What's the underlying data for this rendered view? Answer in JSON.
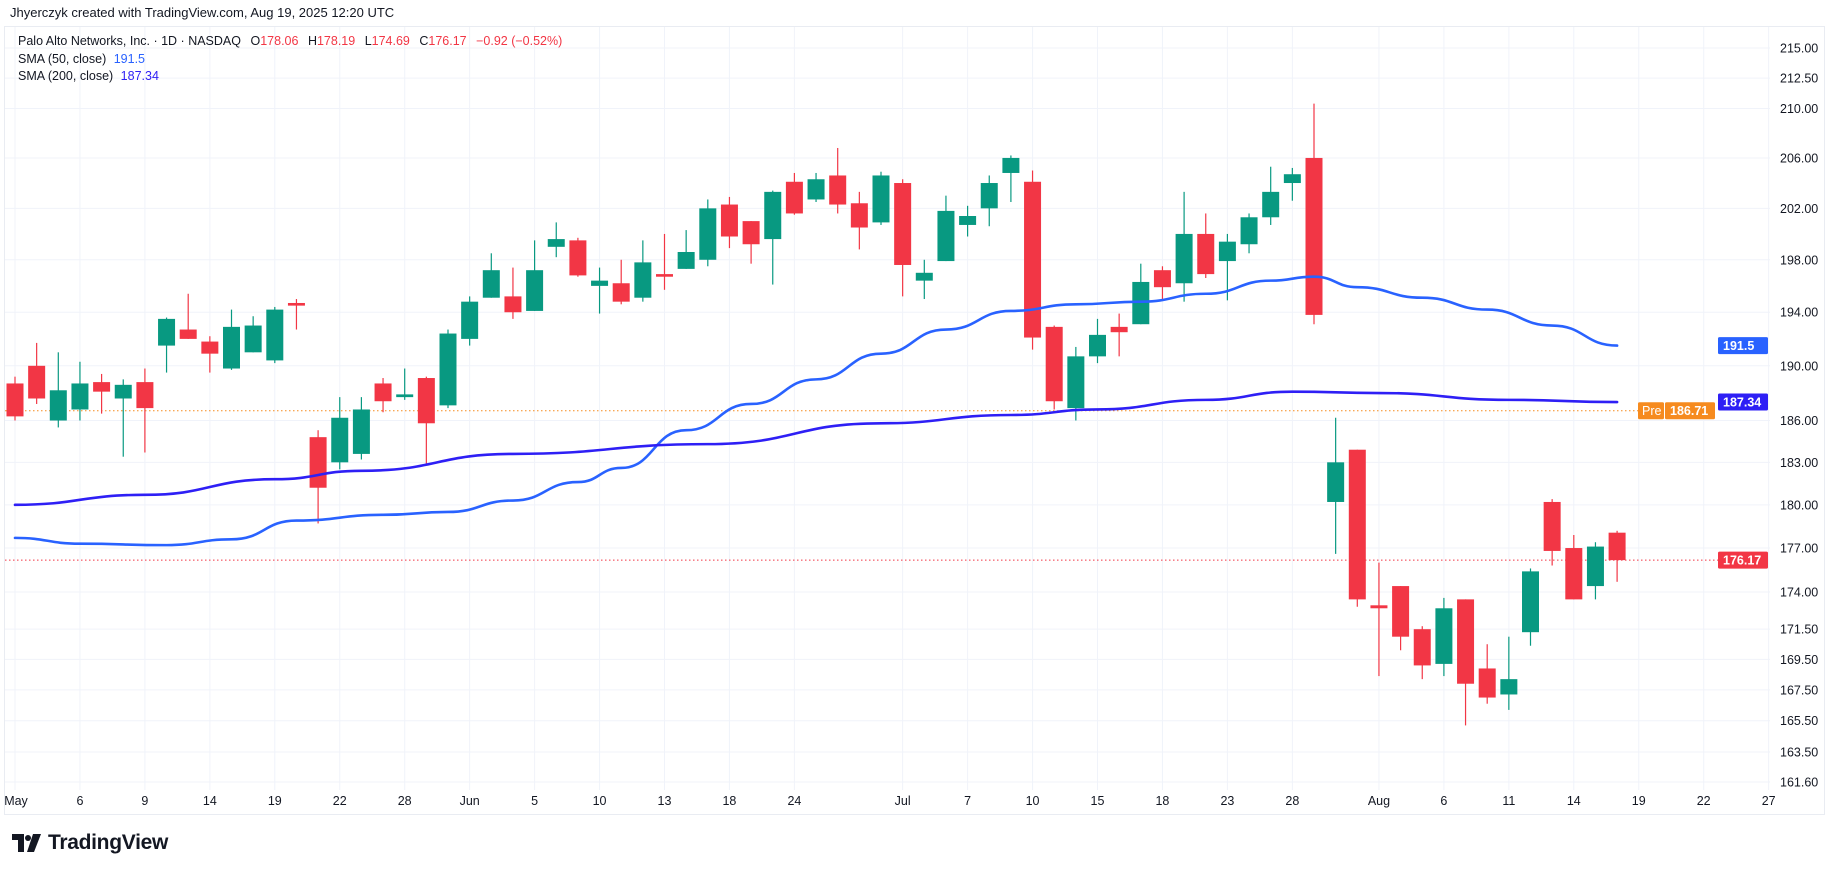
{
  "attribution": "Jhyerczyk created with TradingView.com, Aug 19, 2025 12:20 UTC",
  "legend": {
    "symbol": "Palo Alto Networks, Inc. · 1D · NASDAQ",
    "open_label": "O",
    "open": "178.06",
    "high_label": "H",
    "high": "178.19",
    "low_label": "L",
    "low": "174.69",
    "close_label": "C",
    "close": "176.17",
    "change": "−0.92 (−0.52%)",
    "sma50_label": "SMA (50, close)",
    "sma50_value": "191.5",
    "sma200_label": "SMA (200, close)",
    "sma200_value": "187.34"
  },
  "logo": {
    "text": "TradingView"
  },
  "colors": {
    "up": "#089981",
    "down": "#f23645",
    "sma50": "#2962ff",
    "sma200": "#2e1ff5",
    "premarket": "#f68b1f",
    "grid": "#f0f3fa"
  },
  "chart_data": {
    "type": "candlestick",
    "title": "Palo Alto Networks, Inc. · 1D · NASDAQ",
    "scale": "log",
    "ylim": [
      161.6,
      215.0
    ],
    "y_ticks": [
      "215.00",
      "212.50",
      "210.00",
      "206.00",
      "202.00",
      "198.00",
      "194.00",
      "190.00",
      "186.00",
      "183.00",
      "180.00",
      "177.00",
      "174.00",
      "171.50",
      "169.50",
      "167.50",
      "165.50",
      "163.50",
      "161.60"
    ],
    "x_ticks": [
      {
        "bar": 1,
        "label": "May"
      },
      {
        "bar": 4,
        "label": "6"
      },
      {
        "bar": 7,
        "label": "9"
      },
      {
        "bar": 10,
        "label": "14"
      },
      {
        "bar": 13,
        "label": "19"
      },
      {
        "bar": 16,
        "label": "22"
      },
      {
        "bar": 19,
        "label": "28"
      },
      {
        "bar": 22,
        "label": "Jun"
      },
      {
        "bar": 25,
        "label": "5"
      },
      {
        "bar": 28,
        "label": "10"
      },
      {
        "bar": 31,
        "label": "13"
      },
      {
        "bar": 34,
        "label": "18"
      },
      {
        "bar": 37,
        "label": "24"
      },
      {
        "bar": 42,
        "label": "Jul"
      },
      {
        "bar": 45,
        "label": "7"
      },
      {
        "bar": 48,
        "label": "10"
      },
      {
        "bar": 51,
        "label": "15"
      },
      {
        "bar": 54,
        "label": "18"
      },
      {
        "bar": 57,
        "label": "23"
      },
      {
        "bar": 60,
        "label": "28"
      },
      {
        "bar": 64,
        "label": "Aug"
      },
      {
        "bar": 67,
        "label": "6"
      },
      {
        "bar": 70,
        "label": "11"
      },
      {
        "bar": 73,
        "label": "14"
      },
      {
        "bar": 76,
        "label": "19"
      },
      {
        "bar": 79,
        "label": "22"
      },
      {
        "bar": 82,
        "label": "27"
      }
    ],
    "ohlc_columns": [
      "open",
      "high",
      "low",
      "close"
    ],
    "candles": [
      [
        188.7,
        189.2,
        186.0,
        186.3
      ],
      [
        190.0,
        191.7,
        187.2,
        187.6
      ],
      [
        186.0,
        191.0,
        185.5,
        188.2
      ],
      [
        186.8,
        190.3,
        186.0,
        188.7
      ],
      [
        188.8,
        189.4,
        186.5,
        188.1
      ],
      [
        187.6,
        189.0,
        183.4,
        188.6
      ],
      [
        188.8,
        189.8,
        183.7,
        186.9
      ],
      [
        191.5,
        193.6,
        189.5,
        193.5
      ],
      [
        192.7,
        195.4,
        192.0,
        192.0
      ],
      [
        191.8,
        192.2,
        189.5,
        190.9
      ],
      [
        189.8,
        194.2,
        189.7,
        192.9
      ],
      [
        191.0,
        193.7,
        191.0,
        193.0
      ],
      [
        190.4,
        194.4,
        190.2,
        194.2
      ],
      [
        194.7,
        195.0,
        192.7,
        194.5
      ],
      [
        184.8,
        185.3,
        178.7,
        181.2
      ],
      [
        183.0,
        187.7,
        182.5,
        186.2
      ],
      [
        183.6,
        187.7,
        183.2,
        186.8
      ],
      [
        188.7,
        189.1,
        186.6,
        187.4
      ],
      [
        187.7,
        189.8,
        187.5,
        187.9
      ],
      [
        189.1,
        189.2,
        182.9,
        185.8
      ],
      [
        187.1,
        192.7,
        186.9,
        192.4
      ],
      [
        192.0,
        195.2,
        191.5,
        194.8
      ],
      [
        195.1,
        198.5,
        195.1,
        197.2
      ],
      [
        195.2,
        197.4,
        193.5,
        194.0
      ],
      [
        194.1,
        199.5,
        194.1,
        197.2
      ],
      [
        199.0,
        200.9,
        198.2,
        199.6
      ],
      [
        199.5,
        199.7,
        196.7,
        196.8
      ],
      [
        196.0,
        197.4,
        193.9,
        196.4
      ],
      [
        196.2,
        198.0,
        194.6,
        194.8
      ],
      [
        195.1,
        199.5,
        194.8,
        197.8
      ],
      [
        196.9,
        200.0,
        195.7,
        196.7
      ],
      [
        197.3,
        200.3,
        197.3,
        198.6
      ],
      [
        198.0,
        202.7,
        197.5,
        202.0
      ],
      [
        202.3,
        202.9,
        198.9,
        199.8
      ],
      [
        201.0,
        201.0,
        197.7,
        199.2
      ],
      [
        199.6,
        203.4,
        196.1,
        203.3
      ],
      [
        204.1,
        204.8,
        201.5,
        201.6
      ],
      [
        202.7,
        204.8,
        202.5,
        204.3
      ],
      [
        204.6,
        206.8,
        201.6,
        202.3
      ],
      [
        202.4,
        203.3,
        198.8,
        200.5
      ],
      [
        200.9,
        204.9,
        200.7,
        204.6
      ],
      [
        204.0,
        204.3,
        195.2,
        197.6
      ],
      [
        196.4,
        198.0,
        195.0,
        197.0
      ],
      [
        197.9,
        203.0,
        197.9,
        201.8
      ],
      [
        200.7,
        202.2,
        199.8,
        201.4
      ],
      [
        202.0,
        204.6,
        200.6,
        204.0
      ],
      [
        204.8,
        206.2,
        202.5,
        206.0
      ],
      [
        204.1,
        205.0,
        191.2,
        192.1
      ],
      [
        192.9,
        193.0,
        186.8,
        187.4
      ],
      [
        186.9,
        191.4,
        186.0,
        190.7
      ],
      [
        190.7,
        193.5,
        190.2,
        192.3
      ],
      [
        192.9,
        193.9,
        190.7,
        192.5
      ],
      [
        193.1,
        197.7,
        193.1,
        196.3
      ],
      [
        197.2,
        197.5,
        195.0,
        195.9
      ],
      [
        196.2,
        203.3,
        194.8,
        200.0
      ],
      [
        200.0,
        201.6,
        196.6,
        196.9
      ],
      [
        197.9,
        200.0,
        194.9,
        199.4
      ],
      [
        199.2,
        201.6,
        198.5,
        201.3
      ],
      [
        201.3,
        205.3,
        200.7,
        203.3
      ],
      [
        204.0,
        205.2,
        202.6,
        204.7
      ],
      [
        206.0,
        210.4,
        193.1,
        193.8
      ],
      [
        180.2,
        186.2,
        176.6,
        183.0
      ],
      [
        183.9,
        183.9,
        173.0,
        173.5
      ],
      [
        173.1,
        176.0,
        168.4,
        172.9
      ],
      [
        174.4,
        174.4,
        170.1,
        171.0
      ],
      [
        171.5,
        171.7,
        168.2,
        169.1
      ],
      [
        169.2,
        173.6,
        168.4,
        172.9
      ],
      [
        173.5,
        173.5,
        165.2,
        167.9
      ],
      [
        168.9,
        170.5,
        166.6,
        167.0
      ],
      [
        167.2,
        171.0,
        166.2,
        168.2
      ],
      [
        171.3,
        175.6,
        170.4,
        175.4
      ],
      [
        180.2,
        180.4,
        175.8,
        176.8
      ],
      [
        177.0,
        177.9,
        173.5,
        173.5
      ],
      [
        174.4,
        177.4,
        173.5,
        177.1
      ],
      [
        178.06,
        178.19,
        174.69,
        176.17
      ]
    ],
    "series": [
      {
        "name": "SMA (50, close)",
        "points": [
          [
            1,
            177.7
          ],
          [
            4,
            177.3
          ],
          [
            8,
            177.2
          ],
          [
            11,
            177.6
          ],
          [
            14,
            178.9
          ],
          [
            18,
            179.3
          ],
          [
            21,
            179.5
          ],
          [
            24,
            180.3
          ],
          [
            27,
            181.6
          ],
          [
            29,
            182.6
          ],
          [
            32,
            185.3
          ],
          [
            35,
            187.2
          ],
          [
            38,
            189.0
          ],
          [
            41,
            190.9
          ],
          [
            44,
            192.7
          ],
          [
            47,
            194.1
          ],
          [
            50,
            194.6
          ],
          [
            53,
            194.8
          ],
          [
            56,
            195.4
          ],
          [
            59,
            196.4
          ],
          [
            61,
            196.7
          ],
          [
            63,
            195.9
          ],
          [
            66,
            195.1
          ],
          [
            69,
            194.2
          ],
          [
            72,
            193.0
          ],
          [
            75,
            191.5
          ]
        ]
      },
      {
        "name": "SMA (200, close)",
        "points": [
          [
            1,
            180.0
          ],
          [
            7,
            180.7
          ],
          [
            13,
            181.8
          ],
          [
            17,
            182.4
          ],
          [
            24,
            183.6
          ],
          [
            33,
            184.3
          ],
          [
            41,
            185.8
          ],
          [
            47,
            186.4
          ],
          [
            51,
            186.8
          ],
          [
            56,
            187.5
          ],
          [
            60,
            188.1
          ],
          [
            64,
            188.0
          ],
          [
            70,
            187.5
          ],
          [
            75,
            187.34
          ]
        ]
      }
    ],
    "price_badges": [
      {
        "name": "sma50",
        "value": "191.5",
        "price": 191.5
      },
      {
        "name": "sma200",
        "value": "187.34",
        "price": 187.34
      },
      {
        "name": "premarket",
        "value": "186.71",
        "price": 186.71,
        "tag": "Pre"
      },
      {
        "name": "last",
        "value": "176.17",
        "price": 176.17
      }
    ]
  }
}
